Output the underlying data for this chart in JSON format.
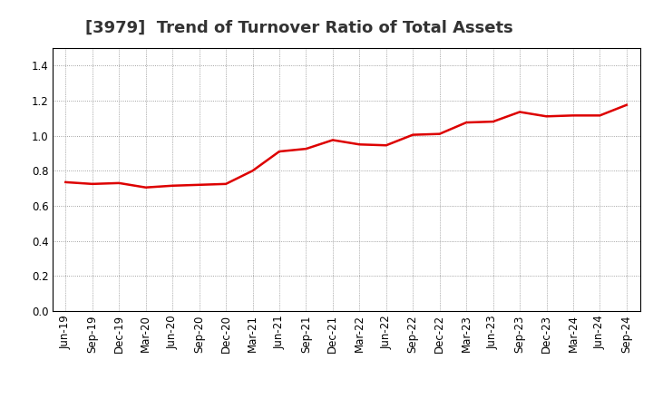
{
  "title": "[3979]  Trend of Turnover Ratio of Total Assets",
  "labels": [
    "Jun-19",
    "Sep-19",
    "Dec-19",
    "Mar-20",
    "Jun-20",
    "Sep-20",
    "Dec-20",
    "Mar-21",
    "Jun-21",
    "Sep-21",
    "Dec-21",
    "Mar-22",
    "Jun-22",
    "Sep-22",
    "Dec-22",
    "Mar-23",
    "Jun-23",
    "Sep-23",
    "Dec-23",
    "Mar-24",
    "Jun-24",
    "Sep-24"
  ],
  "values": [
    0.735,
    0.725,
    0.73,
    0.705,
    0.715,
    0.72,
    0.725,
    0.8,
    0.91,
    0.925,
    0.975,
    0.95,
    0.945,
    1.005,
    1.01,
    1.075,
    1.08,
    1.135,
    1.11,
    1.115,
    1.115,
    1.175
  ],
  "line_color": "#dd0000",
  "ylim": [
    0.0,
    1.5
  ],
  "yticks": [
    0.0,
    0.2,
    0.4,
    0.6,
    0.8,
    1.0,
    1.2,
    1.4
  ],
  "grid_color": "#888888",
  "background_color": "#ffffff",
  "title_fontsize": 13,
  "tick_fontsize": 8.5,
  "line_width": 1.8
}
